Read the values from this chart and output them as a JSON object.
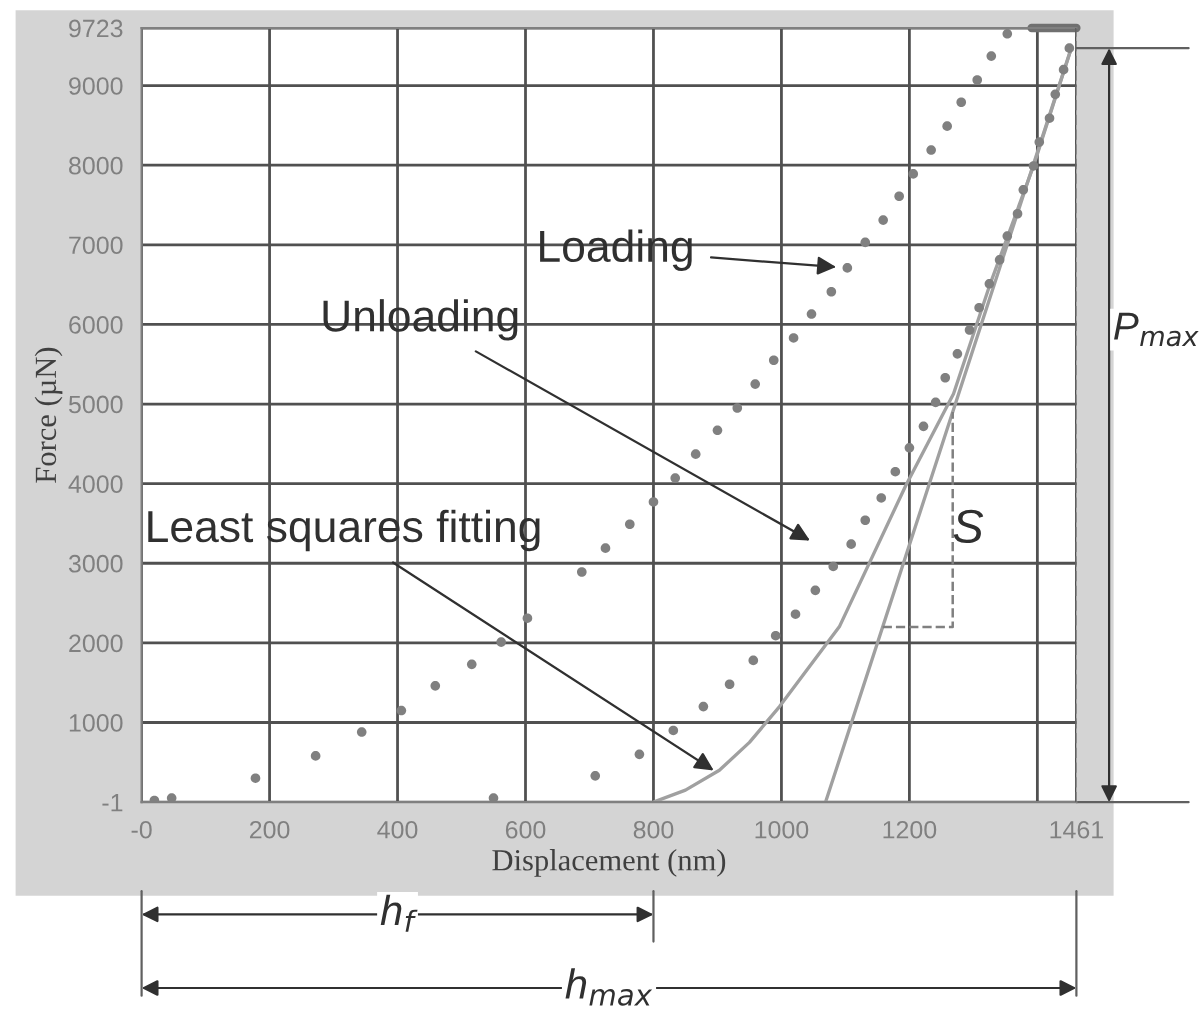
{
  "chart_data": {
    "type": "scatter",
    "xlabel": "Displacement (nm)",
    "ylabel": "Force (µN)",
    "xlim": [
      0,
      1461
    ],
    "ylim": [
      -1,
      9723
    ],
    "xticks": [
      {
        "value": 0,
        "label": "-0"
      },
      200,
      400,
      600,
      800,
      1000,
      1200,
      {
        "value": 1400,
        "label": null
      },
      1461
    ],
    "yticks": [
      -1,
      1000,
      2000,
      3000,
      4000,
      5000,
      6000,
      7000,
      8000,
      9000,
      9723
    ],
    "grid": true,
    "marker": "circle",
    "series": [
      {
        "color": "#808080",
        "x": [
          20,
          47,
          178,
          272,
          344,
          406,
          459,
          516,
          562,
          603,
          688,
          725,
          763,
          800,
          834,
          866,
          900,
          931,
          959,
          988,
          1019,
          1047,
          1078,
          1103,
          1131,
          1159,
          1184,
          1206,
          1234,
          1259,
          1281,
          1306,
          1328,
          1353
        ],
        "values": [
          20,
          50,
          300,
          580,
          880,
          1150,
          1460,
          1730,
          2010,
          2310,
          2890,
          3190,
          3490,
          3770,
          4070,
          4370,
          4670,
          4950,
          5250,
          5550,
          5830,
          6130,
          6410,
          6710,
          7030,
          7310,
          7610,
          7890,
          8190,
          8490,
          8790,
          9070,
          9370,
          9650
        ]
      },
      {
        "color": "#808080",
        "x": [
          550,
          709,
          778,
          831,
          878,
          919,
          956,
          991,
          1022,
          1053,
          1081,
          1109,
          1131,
          1156,
          1178,
          1200,
          1222,
          1241,
          1256,
          1275,
          1294,
          1309,
          1325,
          1341,
          1353,
          1369,
          1378,
          1394,
          1403,
          1419,
          1428,
          1441,
          1450
        ],
        "values": [
          50,
          330,
          600,
          900,
          1200,
          1480,
          1780,
          2090,
          2360,
          2660,
          2960,
          3240,
          3540,
          3820,
          4150,
          4450,
          4720,
          5020,
          5330,
          5630,
          5930,
          6210,
          6510,
          6810,
          7110,
          7390,
          7690,
          7990,
          8290,
          8590,
          8890,
          9200,
          9470
        ]
      },
      {
        "type": "line",
        "color": "#a0a0a0",
        "marker": "none",
        "x": [
          800,
          850,
          903,
          950,
          997,
          1091,
          1194,
          1269,
          1325,
          1394,
          1453
        ],
        "values": [
          0,
          150,
          400,
          750,
          1200,
          2210,
          3970,
          5130,
          6480,
          7990,
          9470
        ]
      },
      {
        "type": "line",
        "color": "#a0a0a0",
        "marker": "none",
        "x": [
          1069,
          1453
        ],
        "values": [
          0,
          9470
        ]
      }
    ],
    "ref_lines": [
      {
        "axis": "x",
        "value": 1461,
        "line_style": "dashed",
        "color": "#606060"
      }
    ],
    "annotations": [
      {
        "text": "Loading",
        "x": 1103,
        "y": 6710
      },
      "Unloading",
      "Least squares fitting",
      "S",
      "P$_{max}$",
      "h$_{f}$",
      "h$_{max}$"
    ]
  }
}
